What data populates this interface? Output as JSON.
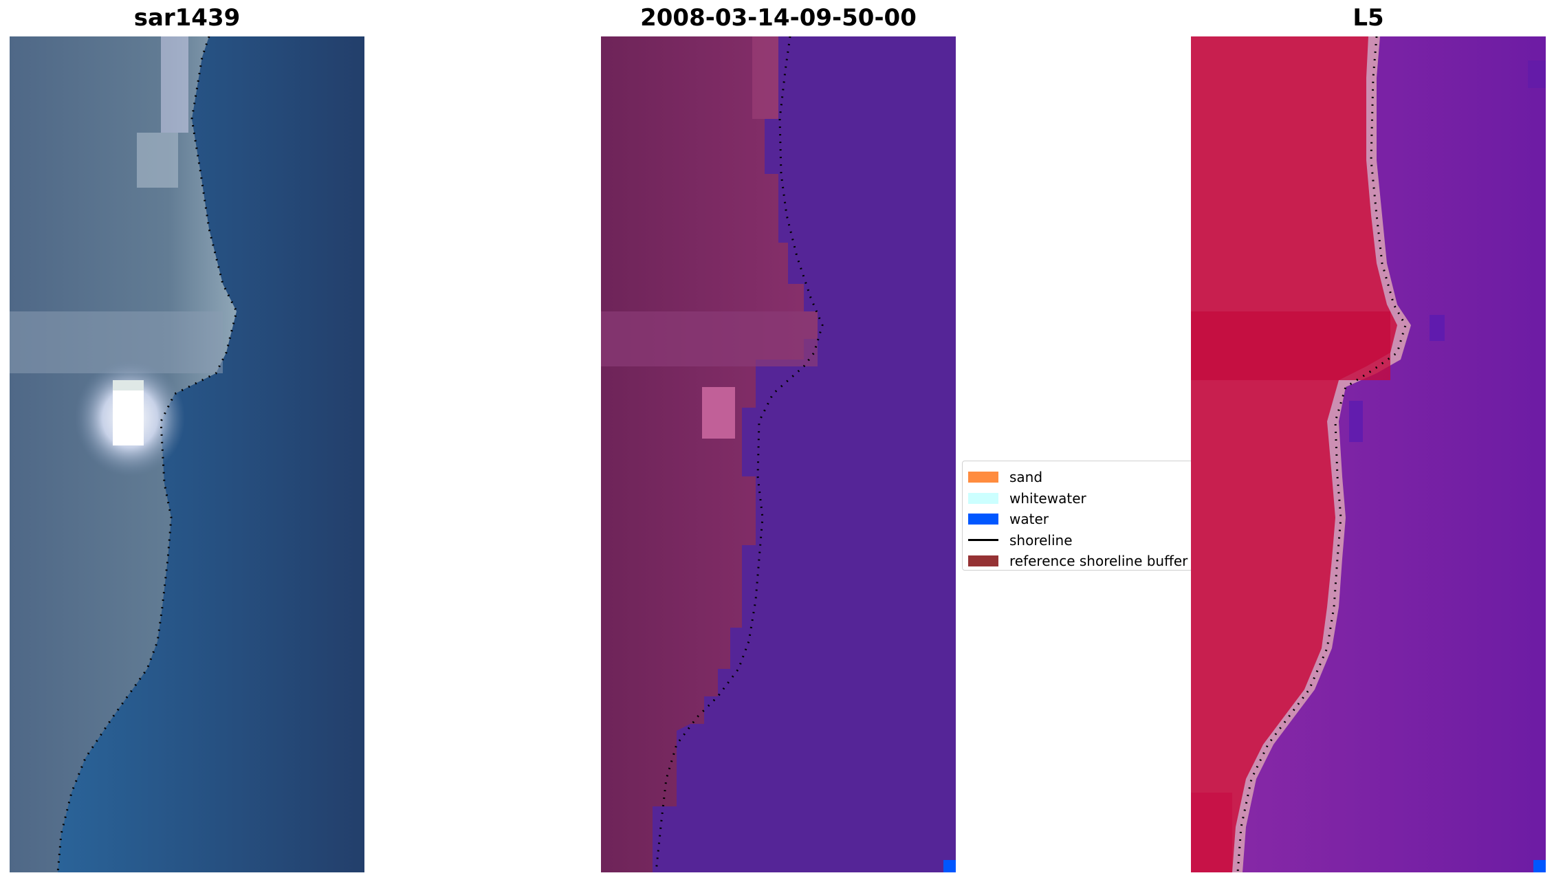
{
  "panels": [
    {
      "id": "rgb",
      "title": "sar1439"
    },
    {
      "id": "classified",
      "title": "2008-03-14-09-50-00"
    },
    {
      "id": "mndwi",
      "title": "L5"
    }
  ],
  "legend": {
    "items": [
      {
        "label": "sand",
        "color": "#ff8c3f",
        "kind": "patch"
      },
      {
        "label": "whitewater",
        "color": "#ccffff",
        "kind": "patch"
      },
      {
        "label": "water",
        "color": "#0057ff",
        "kind": "patch"
      },
      {
        "label": "shoreline",
        "color": "#000000",
        "kind": "line"
      },
      {
        "label": "reference shoreline buffer",
        "color": "#953234",
        "kind": "patch"
      }
    ]
  },
  "colors": {
    "rgb_land": "#5b7390",
    "rgb_water": "#2a5e93",
    "class_land": "#72245f",
    "class_water": "#552597",
    "index_land": "#c8204d",
    "index_water": "#7d23a3"
  }
}
